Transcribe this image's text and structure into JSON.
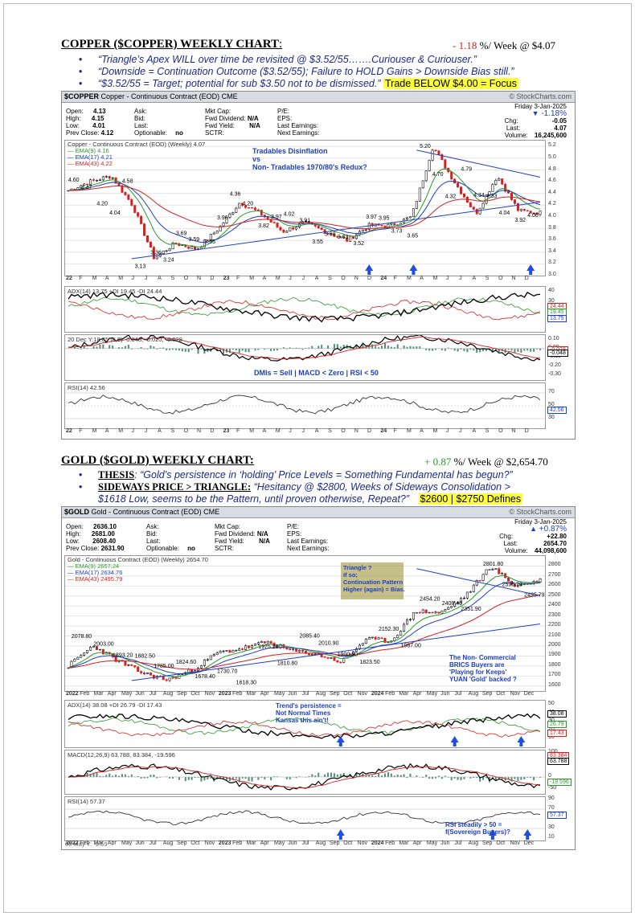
{
  "copper": {
    "heading": "COPPER ($COPPER) WEEKLY CHART",
    "colon": ":",
    "week_change": "- 1.18",
    "week_rest": "%/ Week @ $4.07",
    "bullets": [
      "“Triangle’s Apex WILL over time be revisited @ $3.52/55…….Curiouser & Curiouser.”",
      "“Downside = Continuation Outcome ($3.52/55); Failure to HOLD Gains > Downside Bias still.”",
      "“$3.52/55 = Target; potential for sub $3.50 not to be dismissed.”"
    ],
    "highlight": "Trade BELOW $4.00 = Focus",
    "chart": {
      "symbol": "$COPPER",
      "desc": "Copper - Continuous Contract (EOD) CME",
      "watermark": "© StockCharts.com",
      "date": "Friday  3-Jan-2025",
      "open_l": "Open:",
      "open": "4.13",
      "high_l": "High:",
      "high": "4.15",
      "low_l": "Low:",
      "low": "4.01",
      "prev_l": "Prev Close:",
      "prev": "4.12",
      "ask_l": "Ask:",
      "bid_l": "Bid:",
      "last_l": "Last:",
      "opt_l": "Optionable:",
      "opt": "no",
      "mktcap_l": "Mkt Cap:",
      "fwddiv_l": "Fwd Dividend:",
      "fwddiv": "N/A",
      "fwdyld_l": "Fwd Yield:",
      "fwdyld": "N/A",
      "sctr_l": "SCTR:",
      "pe_l": "P/E:",
      "eps_l": "EPS:",
      "lastearn_l": "Last Earnings:",
      "nextearn_l": "Next Earnings:",
      "pct": "-1.18%",
      "chg_l": "Chg:",
      "chg": "-0.05",
      "lastp_l": "Last:",
      "lastp": "4.07",
      "vol_l": "Volume:",
      "vol": "16,245,600",
      "legend_title": "Copper - Continuous Contract (EOD) (Weekly) 4.07",
      "ema9": "EMA(9) 4.16",
      "ema17": "EMA(17) 4.21",
      "ema43": "EMA(43) 4.22",
      "annotation": "Tradables Disinflation\nvs\nNon- Tradables 1970/80's Redux?",
      "adx_label": "ADX(14) 13.75  +DI 19.45  -DI 24.44",
      "macd_label": "20 Dec Y:18.85  (6,9)  -0.048,  -0.020,  -0.028",
      "rsi_label": "RSI(14) 42.56",
      "summary": "DMIs = Sell | MACD < Zero | RSI < 50",
      "price_labels": [
        "4.60",
        "4.47",
        "4.20",
        "4.04",
        "4.58",
        "3.13",
        "3.36",
        "3.24",
        "3.69",
        "3.59",
        "3.55",
        "3.96",
        "4.36",
        "4.20",
        "3.82",
        "3.97",
        "4.02",
        "3.91",
        "3.55",
        "3.68",
        "3.63",
        "3.52",
        "3.97",
        "3.95",
        "3.73",
        "3.65",
        "5.20",
        "4.70",
        "4.32",
        "4.79",
        "4.34",
        "4.33",
        "4.04",
        "3.92",
        "4.00"
      ],
      "y_ticks": [
        "5.2",
        "5.0",
        "4.8",
        "4.6",
        "4.4",
        "4.2",
        "4.0",
        "3.8",
        "3.6",
        "3.4",
        "3.2",
        "3.0"
      ],
      "x_ticks": [
        "22",
        "F",
        "M",
        "A",
        "M",
        "J",
        "J",
        "A",
        "S",
        "O",
        "N",
        "D",
        "23",
        "F",
        "M",
        "A",
        "M",
        "J",
        "J",
        "A",
        "S",
        "O",
        "N",
        "D",
        "24",
        "F",
        "M",
        "A",
        "M",
        "J",
        "J",
        "A",
        "S",
        "O",
        "N",
        "D"
      ],
      "adx_ticks": [
        "40",
        "30",
        "20",
        "10"
      ],
      "adx_tags": [
        "24.44",
        "19.45",
        "13.75"
      ],
      "macd_ticks": [
        "0.10",
        "0.00",
        "-0.10",
        "-0.20",
        "-0.30"
      ],
      "macd_tags": [
        "-0.028",
        "-0.048"
      ],
      "rsi_ticks": [
        "70",
        "50",
        "30"
      ],
      "rsi_tag": "42.56",
      "chart_data": {
        "type": "line",
        "x": [
          "2022-01",
          "2022-03",
          "2022-04",
          "2022-06",
          "2022-07",
          "2022-09",
          "2022-10",
          "2022-12",
          "2023-01",
          "2023-03",
          "2023-05",
          "2023-07",
          "2023-09",
          "2023-10",
          "2023-12",
          "2024-02",
          "2024-03",
          "2024-05",
          "2024-06",
          "2024-08",
          "2024-10",
          "2024-11",
          "2025-01"
        ],
        "series": [
          {
            "name": "Copper",
            "values": [
              4.45,
              4.6,
              4.7,
              4.2,
              3.3,
              3.55,
              3.45,
              3.8,
              4.25,
              4.05,
              3.75,
              3.9,
              3.75,
              3.6,
              3.85,
              3.85,
              4.0,
              5.2,
              4.6,
              4.05,
              4.7,
              4.1,
              4.07
            ]
          }
        ],
        "ylim": [
          3.0,
          5.3
        ]
      }
    }
  },
  "gold": {
    "heading": "GOLD ($GOLD) WEEKLY CHART:",
    "week_change": "+ 0.87",
    "week_rest": "%/ Week @ $2,654.70",
    "thesis_label": "THESIS",
    "thesis_text": ": “Gold’s persistence in ‘holding’ Price Levels = Something Fundamental has begun?”",
    "sideways_label": "SIDEWAYS PRICE > TRIANGLE:",
    "sideways_text": " “Hesitancy @ $2800, Weeks of Sideways Consolidation >",
    "sideways_text2": "$1618 Low, seems to be the Pattern, until proven otherwise, Repeat?”",
    "highlight": "$2600 | $2750 Defines",
    "chart": {
      "symbol": "$GOLD",
      "desc": "Gold - Continuous Contract (EOD) CME",
      "watermark": "© StockCharts.com",
      "date": "Friday  3-Jan-2025",
      "open_l": "Open:",
      "open": "2636.10",
      "high_l": "High:",
      "high": "2681.00",
      "low_l": "Low:",
      "low": "2608.40",
      "prev_l": "Prev Close:",
      "prev": "2631.90",
      "ask_l": "Ask:",
      "bid_l": "Bid:",
      "last_l": "Last:",
      "opt_l": "Optionable:",
      "opt": "no",
      "mktcap_l": "Mkt Cap:",
      "fwddiv_l": "Fwd Dividend:",
      "fwddiv": "N/A",
      "fwdyld_l": "Fwd Yield:",
      "fwdyld": "N/A",
      "sctr_l": "SCTR:",
      "pe_l": "P/E:",
      "eps_l": "EPS:",
      "lastearn_l": "Last Earnings:",
      "nextearn_l": "Next Earnings:",
      "pct": "+0.87%",
      "chg_l": "Chg:",
      "chg": "+22.80",
      "lastp_l": "Last:",
      "lastp": "2654.70",
      "vol_l": "Volume:",
      "vol": "44,098,600",
      "legend_title": "Gold - Continuous Contract (EOD) (Weekly) 2654.70",
      "ema9": "EMA(9) 2657.24",
      "ema17": "EMA(17) 2634.76",
      "ema43": "EMA(43) 2495.79",
      "box_note": "Triangle ?\nIf so;\nContinuation Pattern\nHigher (again) = Bias.",
      "brics_note": "The Non- Commercial\nBRICS Buyers are\n'Playing for Keeps'\nYUAN 'Gold' backed ?",
      "trend_note": "Trend's persistence =\nNot Normal Times\nKansas this ain't!",
      "rsi_note": "RSI steadily > 50 =\nf(Sovereign Buyers)?",
      "adx_label": "ADX(14) 38.08  +DI 26.79  -DI 17.43",
      "macd_label": "MACD(12,26,9) 63.788,  83.384,  -19.596",
      "rsi_label": "RSI(14) 57.37",
      "corner_label": "08 May Y: -9.59",
      "price_labels": [
        "2078.80",
        "2003.00",
        "1893.20",
        "1882.50",
        "1785.00",
        "1824.60",
        "1678.40",
        "1730.70",
        "1618.30",
        "1975.20",
        "1810.80",
        "2085.40",
        "2010.90",
        "1900.60",
        "1823.50",
        "2152.30",
        "1987.00",
        "2454.20",
        "2408.40",
        "2351.90",
        "2801.80",
        "2596.70",
        "2495.79"
      ],
      "y_ticks": [
        "2800",
        "2700",
        "2600",
        "2500",
        "2400",
        "2300",
        "2200",
        "2100",
        "2000",
        "1900",
        "1800",
        "1700",
        "1600"
      ],
      "x_ticks": [
        "2022",
        "Feb",
        "Mar",
        "Apr",
        "May",
        "Jun",
        "Jul",
        "Aug",
        "Sep",
        "Oct",
        "Nov",
        "2023",
        "Feb",
        "Mar",
        "Apr",
        "May",
        "Jun",
        "Jul",
        "Aug",
        "Sep",
        "Oct",
        "Nov",
        "2024",
        "Feb",
        "Mar",
        "Apr",
        "May",
        "Jun",
        "Jul",
        "Aug",
        "Sep",
        "Oct",
        "Nov",
        "Dec"
      ],
      "adx_ticks": [
        "50",
        "40",
        "30",
        "20",
        "10"
      ],
      "adx_tags": [
        "38.08",
        "26.79",
        "17.43"
      ],
      "macd_ticks": [
        "100",
        "50",
        "0",
        "-50"
      ],
      "macd_tags": [
        "83.384",
        "63.788",
        "-19.596"
      ],
      "rsi_ticks": [
        "90",
        "70",
        "50",
        "30",
        "10"
      ],
      "rsi_tag": "57.37",
      "chart_data": {
        "type": "line",
        "x": [
          "2022-01",
          "2022-03",
          "2022-05",
          "2022-07",
          "2022-09",
          "2022-11",
          "2023-01",
          "2023-03",
          "2023-05",
          "2023-07",
          "2023-09",
          "2023-10",
          "2023-12",
          "2024-02",
          "2024-04",
          "2024-06",
          "2024-08",
          "2024-10",
          "2024-11",
          "2025-01"
        ],
        "series": [
          {
            "name": "Gold",
            "values": [
              1800,
              2003,
              1850,
              1730,
              1660,
              1760,
              1930,
              1975,
              2040,
              1950,
              1920,
              1840,
              2070,
              2050,
              2350,
              2330,
              2500,
              2800,
              2600,
              2654.7
            ]
          }
        ],
        "ylim": [
          1550,
          2900
        ]
      }
    }
  }
}
